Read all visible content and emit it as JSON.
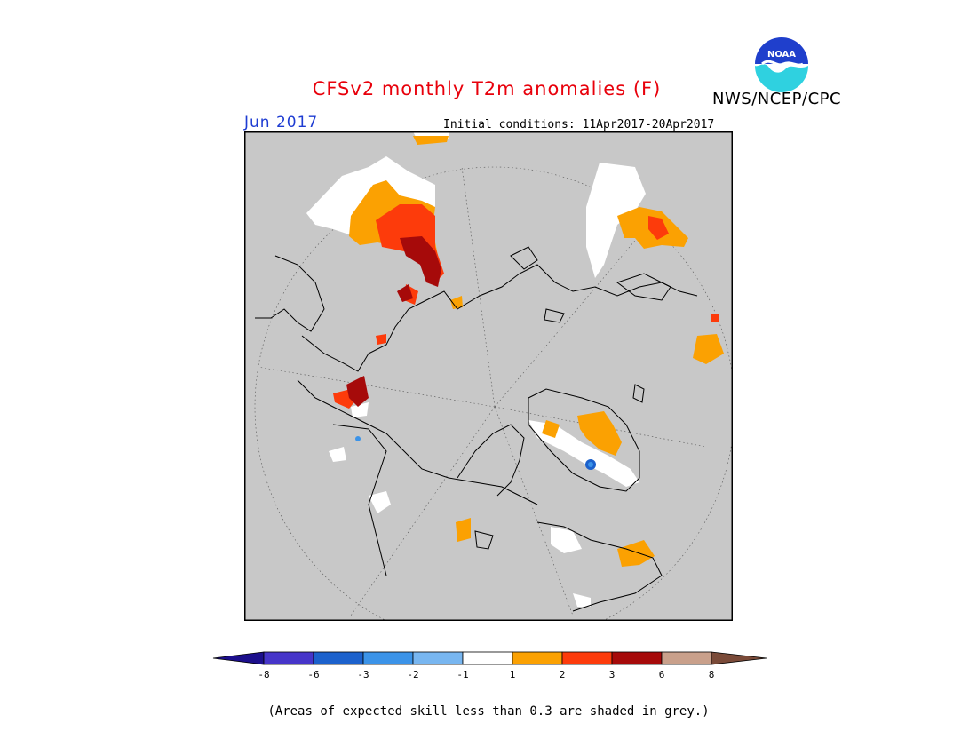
{
  "header": {
    "title": "CFSv2 monthly T2m anomalies (F)",
    "agency": "NWS/NCEP/CPC",
    "month": "Jun 2017",
    "initial_conditions": "Initial conditions: 11Apr2017-20Apr2017"
  },
  "logo": {
    "icon": "noaa-logo-icon",
    "text": "NOAA"
  },
  "legend": {
    "ticks": [
      "-8",
      "-6",
      "-3",
      "-2",
      "-1",
      "1",
      "2",
      "3",
      "6",
      "8"
    ],
    "colors": {
      "lt_-8": "#1c0f8c",
      "-8_-6": "#4635c9",
      "-6_-3": "#1c61cc",
      "-3_-2": "#3b93e8",
      "-2_-1": "#78b6f0",
      "-1_1": "#ffffff",
      "1_2": "#fba102",
      "2_3": "#fd3b0b",
      "3_6": "#a60a0a",
      "6_8": "#c9a08b",
      "gt_8": "#7a4a38"
    }
  },
  "map": {
    "projection": "north-polar-stereographic",
    "background": "#c8c8c8"
  },
  "footnote": "(Areas of expected skill less than 0.3 are shaded in grey.)"
}
